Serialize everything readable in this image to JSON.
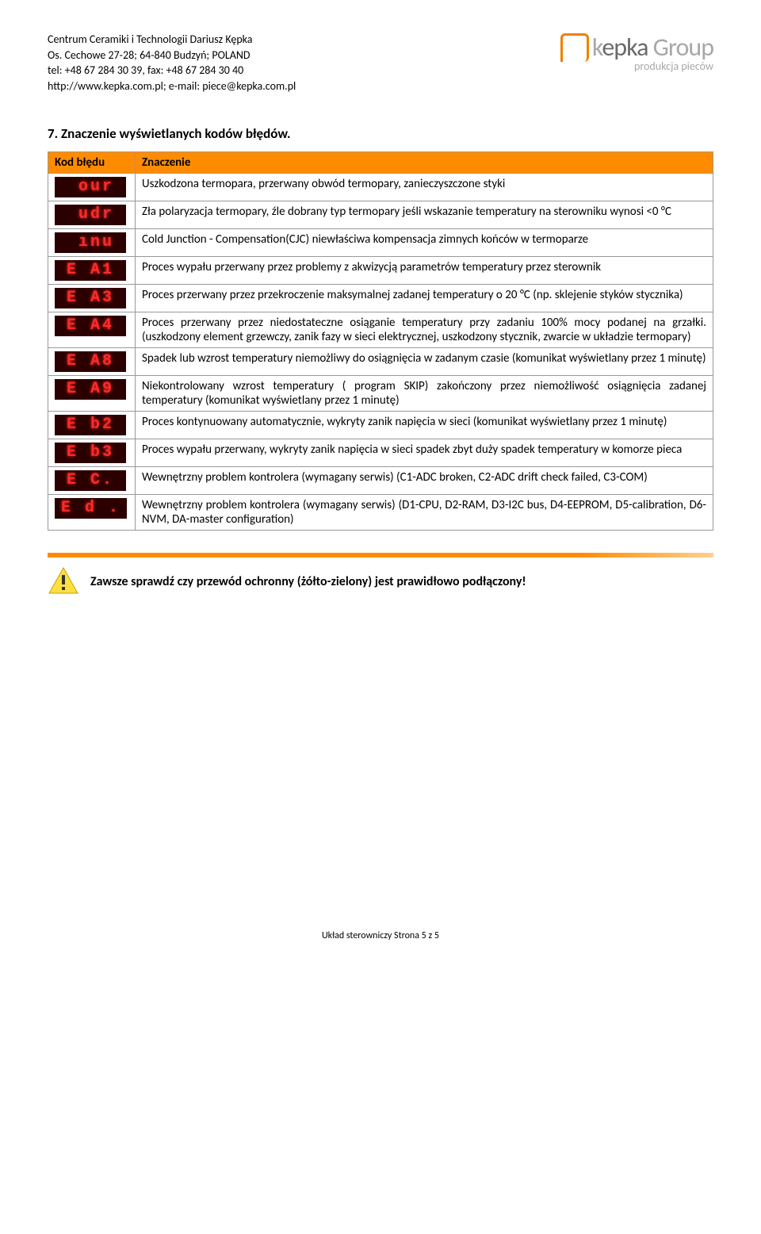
{
  "company": {
    "line1": "Centrum Ceramiki i Technologii Dariusz Kępka",
    "line2": "Os. Cechowe 27-28; 64-840 Budzyń; POLAND",
    "line3": "tel: +48 67 284 30 39, fax: +48 67 284 30 40",
    "line4": "http://www.kepka.com.pl; e-mail: piece@kepka.com.pl"
  },
  "logo": {
    "brand_k": "k",
    "brand_rest": "epka ",
    "brand_group": "Group",
    "sub": "produkcja pieców",
    "colors": {
      "accent": "#f08000",
      "gray": "#a8a8a8",
      "darkgray": "#6a6a6a"
    }
  },
  "section": {
    "number": "7.",
    "title": "Znaczenie wyświetlanych kodów błędów."
  },
  "table": {
    "header_code": "Kod błędu",
    "header_meaning": "Znaczenie",
    "rows": [
      {
        "code": " our",
        "meaning": "Uszkodzona termopara, przerwany obwód termopary, zanieczyszczone styki"
      },
      {
        "code": " udr",
        "meaning": "Zła polaryzacja termopary, źle dobrany typ termopary jeśli wskazanie temperatury na sterowniku wynosi <0 °C"
      },
      {
        "code": " ınu",
        "meaning": "Cold Junction - Compensation(CJC) niewłaściwa kompensacja zimnych końców w termoparze"
      },
      {
        "code": "E A1",
        "meaning": "Proces wypału przerwany przez problemy z akwizycją parametrów temperatury przez sterownik"
      },
      {
        "code": "E A3",
        "meaning": "Proces przerwany przez przekroczenie maksymalnej zadanej temperatury o 20 °C (np. sklejenie styków stycznika)"
      },
      {
        "code": "E A4",
        "meaning": "Proces przerwany przez niedostateczne osiąganie temperatury przy zadaniu 100% mocy podanej na grzałki. (uszkodzony element grzewczy, zanik fazy w sieci elektrycznej, uszkodzony stycznik, zwarcie w układzie termopary)"
      },
      {
        "code": "E A8",
        "meaning": "Spadek lub wzrost temperatury niemożliwy do osiągnięcia w zadanym czasie (komunikat wyświetlany przez 1 minutę)"
      },
      {
        "code": "E A9",
        "meaning": "Niekontrolowany wzrost temperatury ( program SKIP) zakończony przez niemożliwość osiągnięcia zadanej temperatury (komunikat wyświetlany przez 1 minutę)"
      },
      {
        "code": "E b2",
        "meaning": "Proces kontynuowany automatycznie, wykryty zanik napięcia w sieci (komunikat wyświetlany przez 1 minutę)"
      },
      {
        "code": "E b3",
        "meaning": "Proces wypału przerwany, wykryty zanik napięcia w sieci spadek zbyt duży spadek temperatury w komorze pieca"
      },
      {
        "code": "E C.",
        "meaning": "Wewnętrzny problem kontrolera (wymagany serwis) (C1-ADC broken, C2-ADC drift check failed, C3-COM)"
      },
      {
        "code": "E d .",
        "meaning": "Wewnętrzny problem kontrolera (wymagany serwis) (D1-CPU, D2-RAM, D3-I2C bus, D4-EEPROM, D5-calibration, D6-NVM, DA-master configuration)"
      }
    ],
    "colors": {
      "header_bg": "#ff8c00",
      "border": "#999999",
      "led_bg": "#2a0000",
      "led_fg": "#ff2a2a"
    }
  },
  "warning": {
    "text": "Zawsze sprawdź czy przewód ochronny (żółto-zielony) jest prawidłowo podłączony!"
  },
  "footer": {
    "text": "Układ sterowniczy Strona 5 z 5"
  }
}
